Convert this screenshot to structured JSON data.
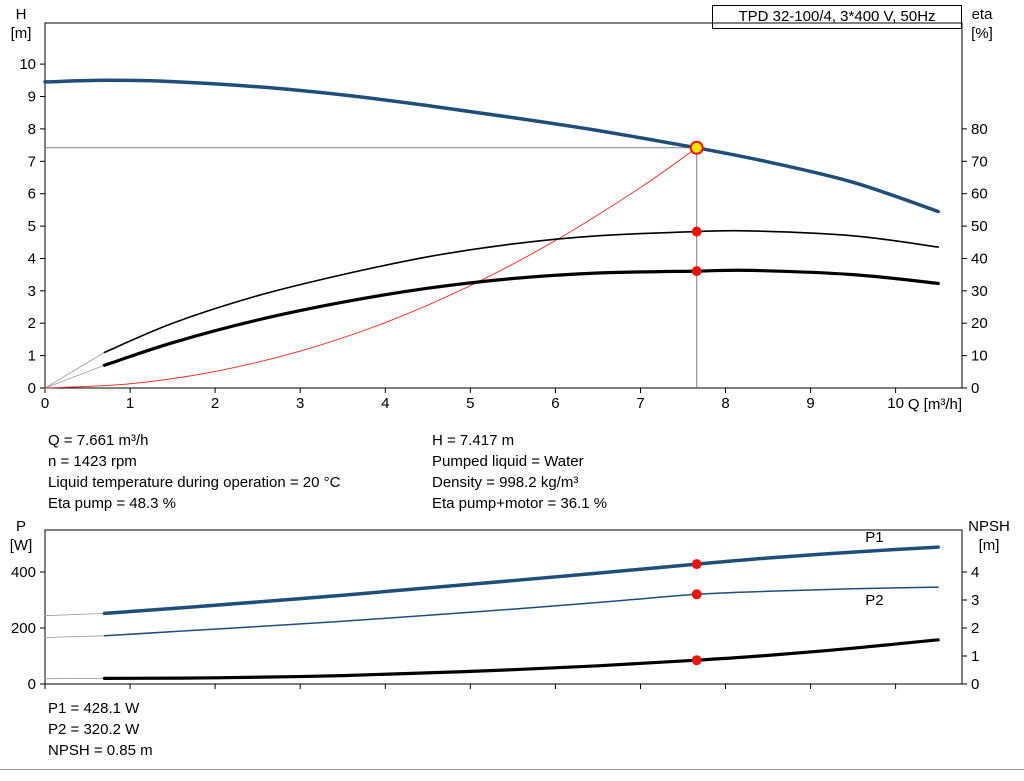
{
  "title_box": "TPD 32-100/4, 3*400 V, 50Hz",
  "colors": {
    "curve_blue": "#1f4e79",
    "curve_black": "#000000",
    "curve_red": "#e8382e",
    "duty_red": "#e8150d",
    "duty_yellow": "#ffe400",
    "crosshair": "#808080",
    "lead_gray": "#999999"
  },
  "axis_labels": {
    "h": [
      "H",
      "[m]"
    ],
    "eta": [
      "eta",
      "[%]"
    ],
    "q": "Q [m³/h]",
    "p": [
      "P",
      "[W]"
    ],
    "npsh": [
      "NPSH",
      "[m]"
    ]
  },
  "info_block": {
    "col1": [
      "Q = 7.661 m³/h",
      "n = 1423 rpm",
      "Liquid temperature during operation = 20 °C",
      "Eta pump = 48.3 %"
    ],
    "col2": [
      "H = 7.417 m",
      "Pumped liquid = Water",
      "Density = 998.2 kg/m³",
      "Eta pump+motor = 36.1 %"
    ]
  },
  "result_block": [
    "P1 = 428.1 W",
    "P2 = 320.2 W",
    "NPSH = 0.85 m"
  ],
  "chart_data": [
    {
      "id": "chart-top",
      "type": "line",
      "title": "TPD 32-100/4, 3*400 V, 50Hz",
      "x": {
        "label": "Q [m³/h]",
        "min": 0,
        "max": 10.78,
        "ticks": [
          0,
          1,
          2,
          3,
          4,
          5,
          6,
          7,
          8,
          9,
          10
        ],
        "tick_labels": true
      },
      "y_left": {
        "label": "H [m]",
        "min": 0,
        "max": 11.27,
        "ticks": [
          0,
          1,
          2,
          3,
          4,
          5,
          6,
          7,
          8,
          9,
          10
        ],
        "tick_labels": true
      },
      "y_right": {
        "label": "eta [%]",
        "min": 0,
        "max": 112.7,
        "ticks": [
          0,
          10,
          20,
          30,
          40,
          50,
          60,
          70,
          80
        ],
        "tick_labels": true
      },
      "series": [
        {
          "name": "lead-eta-pump",
          "axis": "y_right",
          "color": "#999999",
          "width": 0.8,
          "points": [
            [
              0,
              0
            ],
            [
              0.7,
              11
            ]
          ]
        },
        {
          "name": "lead-eta-pump-motor",
          "axis": "y_right",
          "color": "#999999",
          "width": 0.8,
          "points": [
            [
              0,
              0
            ],
            [
              0.7,
              7
            ]
          ]
        },
        {
          "name": "system-curve",
          "axis": "y_left",
          "color": "#e8382e",
          "width": 1,
          "points": [
            [
              0,
              0
            ],
            [
              1,
              0.13
            ],
            [
              2,
              0.51
            ],
            [
              3,
              1.14
            ],
            [
              4,
              2.02
            ],
            [
              5,
              3.16
            ],
            [
              6,
              4.55
            ],
            [
              7,
              6.19
            ],
            [
              7.661,
              7.417
            ]
          ]
        },
        {
          "name": "eta-pump-curve",
          "axis": "y_right",
          "color": "#000000",
          "width": 1.6,
          "points": [
            [
              0.7,
              11
            ],
            [
              1.5,
              20
            ],
            [
              2.5,
              28.5
            ],
            [
              3.5,
              35
            ],
            [
              4.5,
              40.5
            ],
            [
              5.5,
              44.5
            ],
            [
              6.5,
              47
            ],
            [
              7.661,
              48.3
            ],
            [
              8.3,
              48.5
            ],
            [
              9.5,
              47
            ],
            [
              10.5,
              43.5
            ]
          ]
        },
        {
          "name": "eta-pump-motor-curve",
          "axis": "y_right",
          "color": "#000000",
          "width": 3.2,
          "points": [
            [
              0.7,
              7
            ],
            [
              1.5,
              14
            ],
            [
              2.5,
              21
            ],
            [
              3.5,
              26.5
            ],
            [
              4.5,
              30.8
            ],
            [
              5.5,
              33.8
            ],
            [
              6.5,
              35.5
            ],
            [
              7.661,
              36.1
            ],
            [
              8.3,
              36.3
            ],
            [
              9.5,
              35
            ],
            [
              10.5,
              32.3
            ]
          ]
        },
        {
          "name": "qh-curve",
          "axis": "y_left",
          "color": "#1f4e79",
          "width": 3.5,
          "points": [
            [
              0,
              9.45
            ],
            [
              0.7,
              9.5
            ],
            [
              1.5,
              9.46
            ],
            [
              2.5,
              9.3
            ],
            [
              3.5,
              9.05
            ],
            [
              4.5,
              8.72
            ],
            [
              5.5,
              8.35
            ],
            [
              6.5,
              7.95
            ],
            [
              7.661,
              7.417
            ],
            [
              8.5,
              6.98
            ],
            [
              9.5,
              6.35
            ],
            [
              10.5,
              5.45
            ]
          ]
        }
      ],
      "crosshair": {
        "x": 7.661,
        "y": 7.417,
        "axis": "y_left"
      },
      "duty_points": [
        {
          "x": 7.661,
          "y": 48.3,
          "axis": "y_right",
          "style": "red"
        },
        {
          "x": 7.661,
          "y": 36.1,
          "axis": "y_right",
          "style": "red"
        },
        {
          "x": 7.661,
          "y": 7.417,
          "axis": "y_left",
          "style": "yellow"
        }
      ]
    },
    {
      "id": "chart-bottom",
      "type": "line",
      "x": {
        "label": "",
        "min": 0,
        "max": 10.78,
        "ticks": [
          0,
          1,
          2,
          3,
          4,
          5,
          6,
          7,
          8,
          9,
          10
        ],
        "tick_labels": false
      },
      "y_left": {
        "label": "P [W]",
        "min": 0,
        "max": 550,
        "ticks": [
          0,
          200,
          400
        ],
        "tick_labels": true
      },
      "y_right": {
        "label": "NPSH [m]",
        "min": 0,
        "max": 5.5,
        "ticks": [
          0,
          1,
          2,
          3,
          4
        ],
        "tick_labels": true
      },
      "series": [
        {
          "name": "lead-p1",
          "axis": "y_left",
          "color": "#999999",
          "width": 0.8,
          "points": [
            [
              0,
              244
            ],
            [
              0.7,
              252
            ]
          ]
        },
        {
          "name": "lead-p2",
          "axis": "y_left",
          "color": "#999999",
          "width": 0.8,
          "points": [
            [
              0,
              166
            ],
            [
              0.7,
              172
            ]
          ]
        },
        {
          "name": "lead-npsh",
          "axis": "y_right",
          "color": "#999999",
          "width": 0.8,
          "points": [
            [
              0,
              0.19
            ],
            [
              0.7,
              0.2
            ]
          ]
        },
        {
          "name": "p1-curve",
          "axis": "y_left",
          "color": "#1f4e79",
          "width": 3.5,
          "label": "P1",
          "label_at": [
            9.75,
            525
          ],
          "points": [
            [
              0.7,
              252
            ],
            [
              2,
              281
            ],
            [
              3.5,
              317
            ],
            [
              5,
              356
            ],
            [
              6.5,
              396
            ],
            [
              7.661,
              428.1
            ],
            [
              8.5,
              450
            ],
            [
              9.5,
              471
            ],
            [
              10.5,
              489
            ]
          ]
        },
        {
          "name": "p2-curve",
          "axis": "y_left",
          "color": "#1f4e79",
          "width": 1.5,
          "label": "P2",
          "label_at": [
            9.75,
            300
          ],
          "points": [
            [
              0.7,
              172
            ],
            [
              2,
              196
            ],
            [
              3.5,
              224
            ],
            [
              5,
              256
            ],
            [
              6.5,
              291
            ],
            [
              7.661,
              320.2
            ],
            [
              8.5,
              331
            ],
            [
              9.5,
              340
            ],
            [
              10.5,
              346
            ]
          ]
        },
        {
          "name": "npsh-curve",
          "axis": "y_right",
          "color": "#000000",
          "width": 3.2,
          "points": [
            [
              0.7,
              0.2
            ],
            [
              2,
              0.22
            ],
            [
              3.5,
              0.3
            ],
            [
              5,
              0.45
            ],
            [
              6.5,
              0.65
            ],
            [
              7.661,
              0.85
            ],
            [
              8.5,
              1.02
            ],
            [
              9.5,
              1.28
            ],
            [
              10.5,
              1.58
            ]
          ]
        }
      ],
      "duty_points": [
        {
          "x": 7.661,
          "y": 428.1,
          "axis": "y_left",
          "style": "red"
        },
        {
          "x": 7.661,
          "y": 320.2,
          "axis": "y_left",
          "style": "red"
        },
        {
          "x": 7.661,
          "y": 0.85,
          "axis": "y_right",
          "style": "red"
        }
      ]
    }
  ]
}
